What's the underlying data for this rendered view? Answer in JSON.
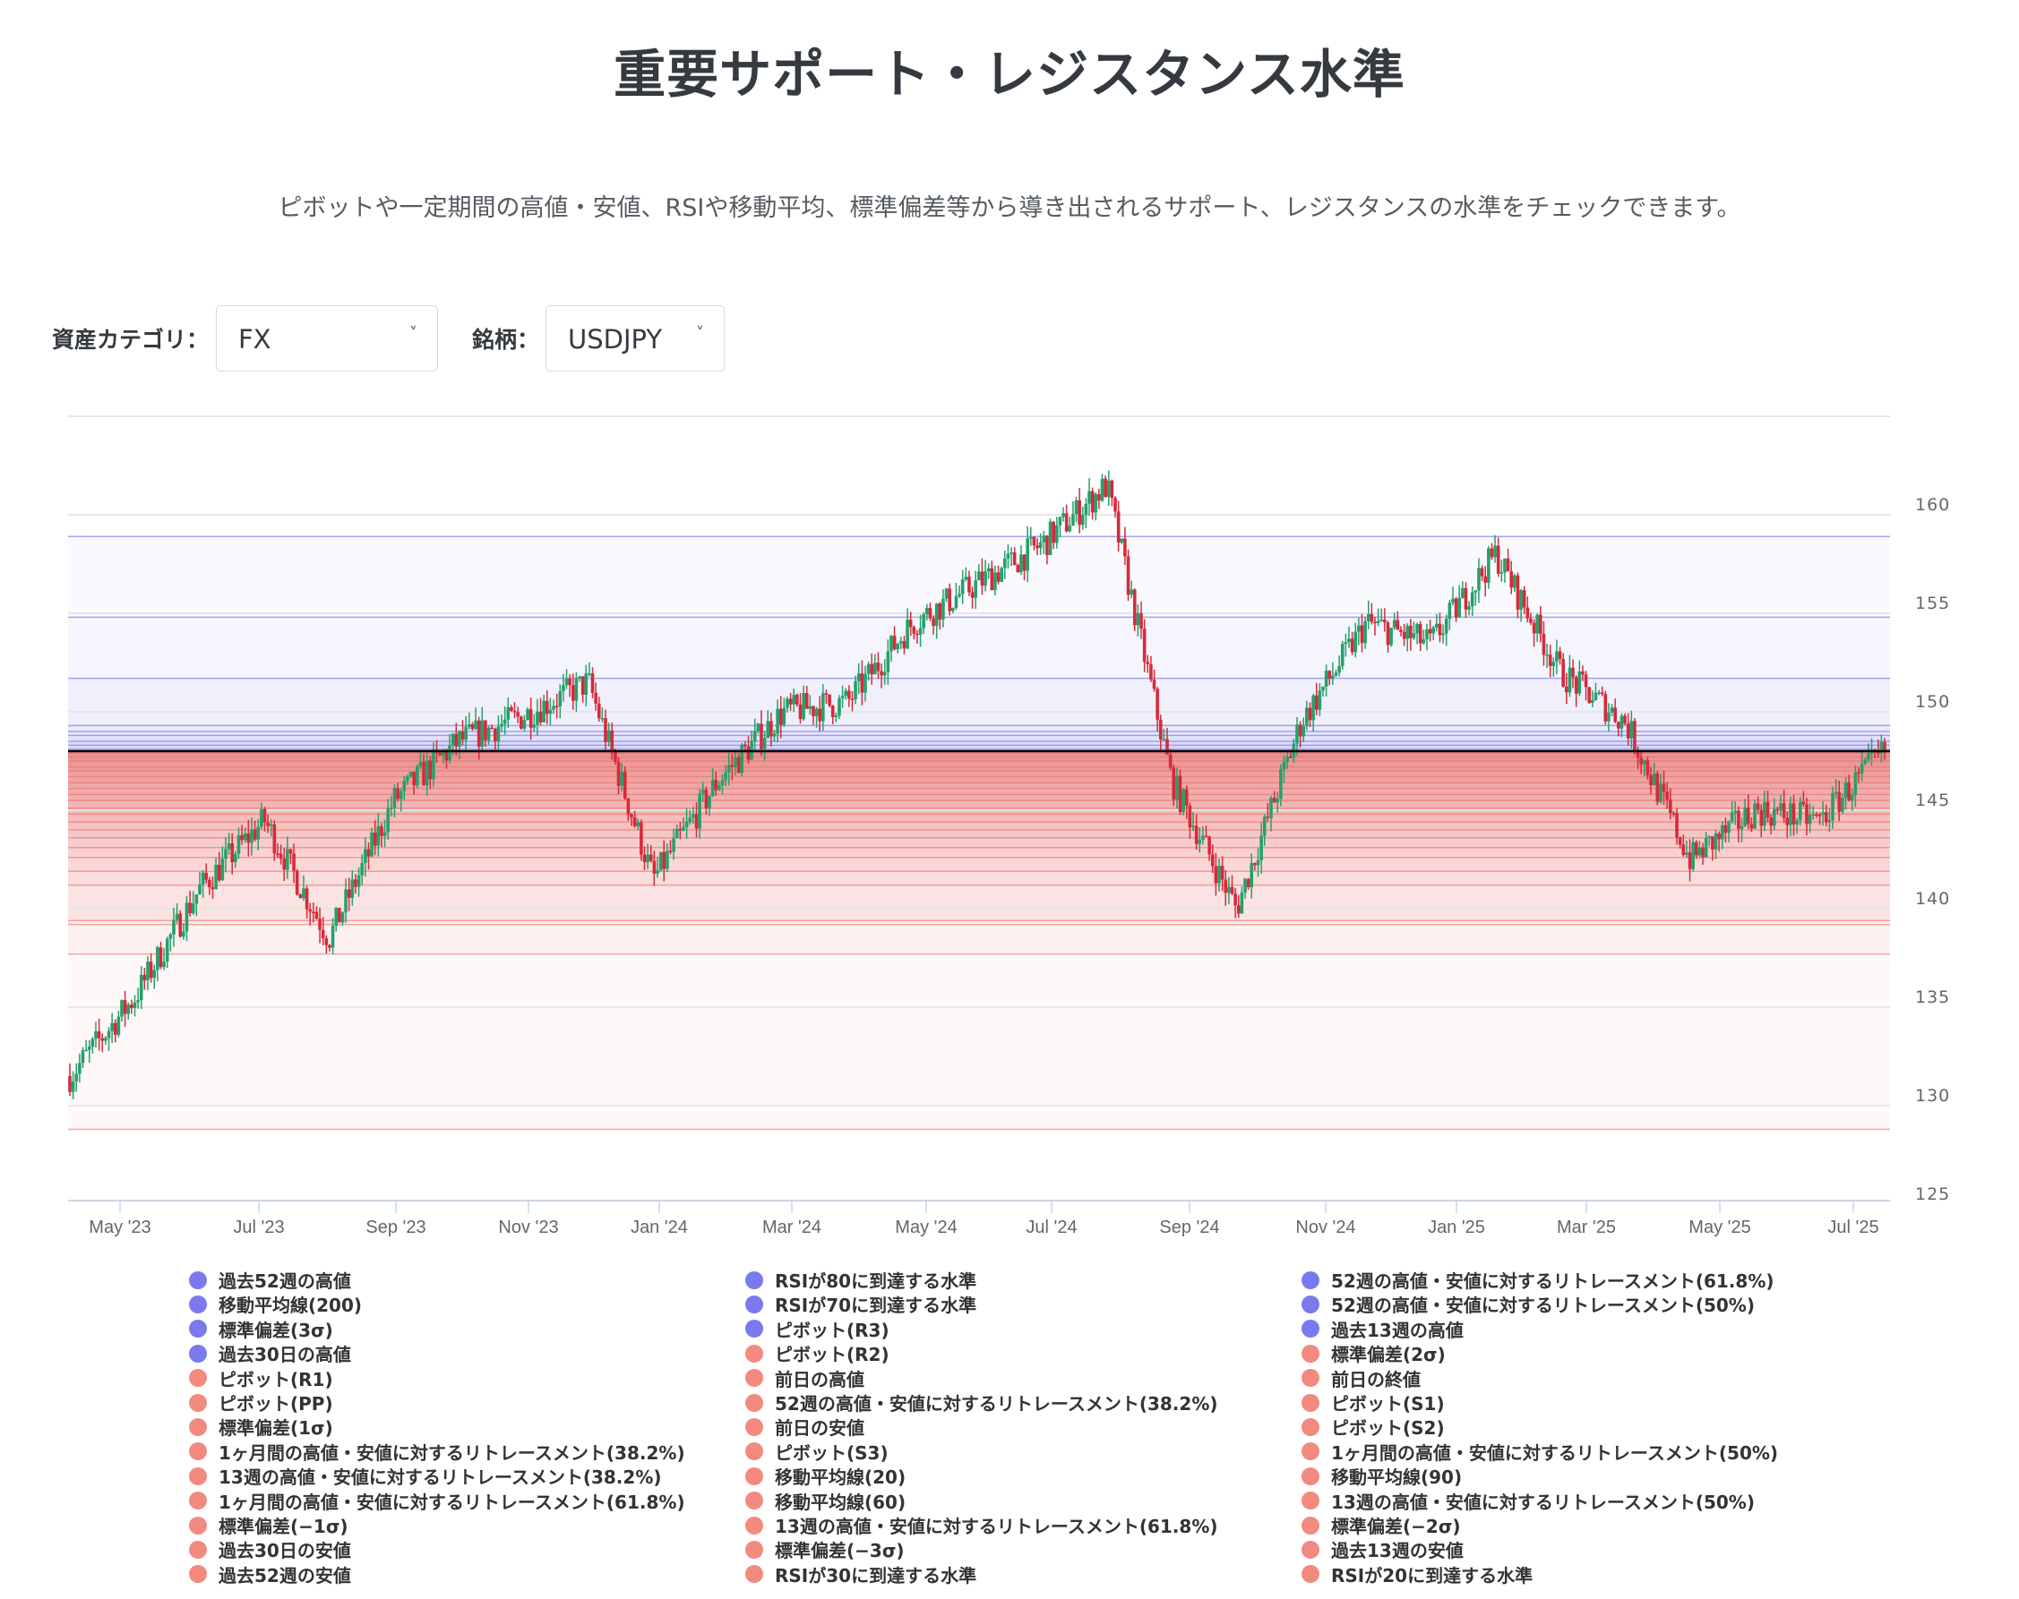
{
  "header": {
    "title": "重要サポート・レジスタンス水準",
    "subtitle": "ピボットや一定期間の高値・安値、RSIや移動平均、標準偏差等から導き出されるサポート、レジスタンスの水準をチェックできます。"
  },
  "controls": {
    "category_label": "資産カテゴリ：",
    "category_value": "FX",
    "symbol_label": "銘柄：",
    "symbol_value": "USDJPY",
    "chevron": "˅"
  },
  "colors": {
    "up_candle": "#26a06b",
    "down_candle": "#d62a3a",
    "resistance": "#7a7aee",
    "support": "#f28a80",
    "current_price_line": "#000000",
    "grid": "#e6e6e6"
  },
  "chart_data": {
    "type": "candlestick",
    "title": "USDJPY",
    "xlabel": "",
    "ylabel": "",
    "ylim": [
      125,
      165
    ],
    "y_ticks": [
      125,
      130,
      135,
      140,
      145,
      150,
      155,
      160
    ],
    "x_ticks": [
      "May '23",
      "Jul '23",
      "Sep '23",
      "Nov '23",
      "Jan '24",
      "Mar '24",
      "May '24",
      "Jul '24",
      "Sep '24",
      "Nov '24",
      "Jan '25",
      "Mar '25",
      "May '25",
      "Jul '25"
    ],
    "grid": true,
    "legend_position": "bottom",
    "current_price": 148.0,
    "price_path": [
      {
        "x": "Apr '23",
        "close": 131.5
      },
      {
        "x": "May '23",
        "close": 135.5
      },
      {
        "x": "Jun '23",
        "close": 141.0
      },
      {
        "x": "Jul '23",
        "close": 144.5
      },
      {
        "x": "Jul '23 end",
        "close": 138.5
      },
      {
        "x": "Aug '23",
        "close": 145.5
      },
      {
        "x": "Sep '23",
        "close": 148.5
      },
      {
        "x": "Oct '23",
        "close": 149.8
      },
      {
        "x": "Nov '23",
        "close": 151.5
      },
      {
        "x": "Dec '23",
        "close": 141.5
      },
      {
        "x": "Jan '24",
        "close": 146.5
      },
      {
        "x": "Feb '24",
        "close": 150.0
      },
      {
        "x": "Mar '24",
        "close": 150.5
      },
      {
        "x": "Apr '24",
        "close": 154.5
      },
      {
        "x": "May '24",
        "close": 156.5
      },
      {
        "x": "Jun '24",
        "close": 158.5
      },
      {
        "x": "Jul '24",
        "close": 161.5
      },
      {
        "x": "Aug '24",
        "close": 146.5
      },
      {
        "x": "Sep '24",
        "close": 140.0
      },
      {
        "x": "Oct '24",
        "close": 149.5
      },
      {
        "x": "Nov '24",
        "close": 154.5
      },
      {
        "x": "Dec '24",
        "close": 153.5
      },
      {
        "x": "Jan '25",
        "close": 158.0
      },
      {
        "x": "Feb '25",
        "close": 152.0
      },
      {
        "x": "Mar '25",
        "close": 149.5
      },
      {
        "x": "Apr '25",
        "close": 142.5
      },
      {
        "x": "May '25",
        "close": 145.0
      },
      {
        "x": "Jun '25",
        "close": 144.5
      },
      {
        "x": "Jul '25",
        "close": 148.0
      }
    ],
    "resistance_levels_approx": [
      158.9,
      154.8,
      151.7,
      149.3,
      149.0,
      148.8,
      148.5,
      148.3,
      148.1
    ],
    "support_levels_approx": [
      147.9,
      147.7,
      147.5,
      147.2,
      147.0,
      146.7,
      146.4,
      146.1,
      145.8,
      145.5,
      145.1,
      144.8,
      144.4,
      144.0,
      143.6,
      143.1,
      142.6,
      141.9,
      141.2,
      139.4,
      139.2,
      137.7,
      128.8
    ],
    "series": [
      {
        "name": "過去52週の高値",
        "group": "resistance"
      },
      {
        "name": "移動平均線(200)",
        "group": "resistance"
      },
      {
        "name": "標準偏差(3σ)",
        "group": "resistance"
      },
      {
        "name": "過去30日の高値",
        "group": "resistance"
      },
      {
        "name": "RSIが80に到達する水準",
        "group": "resistance"
      },
      {
        "name": "RSIが70に到達する水準",
        "group": "resistance"
      },
      {
        "name": "ピボット(R3)",
        "group": "resistance"
      },
      {
        "name": "52週の高値・安値に対するリトレースメント(61.8%)",
        "group": "resistance"
      },
      {
        "name": "52週の高値・安値に対するリトレースメント(50%)",
        "group": "resistance"
      },
      {
        "name": "過去13週の高値",
        "group": "resistance"
      }
    ]
  },
  "legend": {
    "columns": [
      [
        {
          "label": "過去52週の高値",
          "type": "resistance"
        },
        {
          "label": "移動平均線(200)",
          "type": "resistance"
        },
        {
          "label": "標準偏差(3σ)",
          "type": "resistance"
        },
        {
          "label": "過去30日の高値",
          "type": "resistance"
        },
        {
          "label": "ピボット(R1)",
          "type": "support"
        },
        {
          "label": "ピボット(PP)",
          "type": "support"
        },
        {
          "label": "標準偏差(1σ)",
          "type": "support"
        },
        {
          "label": "1ヶ月間の高値・安値に対するリトレースメント(38.2%)",
          "type": "support"
        },
        {
          "label": "13週の高値・安値に対するリトレースメント(38.2%)",
          "type": "support"
        },
        {
          "label": "1ヶ月間の高値・安値に対するリトレースメント(61.8%)",
          "type": "support"
        },
        {
          "label": "標準偏差(−1σ)",
          "type": "support"
        },
        {
          "label": "過去30日の安値",
          "type": "support"
        },
        {
          "label": "過去52週の安値",
          "type": "support"
        }
      ],
      [
        {
          "label": "RSIが80に到達する水準",
          "type": "resistance"
        },
        {
          "label": "RSIが70に到達する水準",
          "type": "resistance"
        },
        {
          "label": "ピボット(R3)",
          "type": "resistance"
        },
        {
          "label": "ピボット(R2)",
          "type": "support"
        },
        {
          "label": "前日の高値",
          "type": "support"
        },
        {
          "label": "52週の高値・安値に対するリトレースメント(38.2%)",
          "type": "support"
        },
        {
          "label": "前日の安値",
          "type": "support"
        },
        {
          "label": "ピボット(S3)",
          "type": "support"
        },
        {
          "label": "移動平均線(20)",
          "type": "support"
        },
        {
          "label": "移動平均線(60)",
          "type": "support"
        },
        {
          "label": "13週の高値・安値に対するリトレースメント(61.8%)",
          "type": "support"
        },
        {
          "label": "標準偏差(−3σ)",
          "type": "support"
        },
        {
          "label": "RSIが30に到達する水準",
          "type": "support"
        }
      ],
      [
        {
          "label": "52週の高値・安値に対するリトレースメント(61.8%)",
          "type": "resistance"
        },
        {
          "label": "52週の高値・安値に対するリトレースメント(50%)",
          "type": "resistance"
        },
        {
          "label": "過去13週の高値",
          "type": "resistance"
        },
        {
          "label": "標準偏差(2σ)",
          "type": "support"
        },
        {
          "label": "前日の終値",
          "type": "support"
        },
        {
          "label": "ピボット(S1)",
          "type": "support"
        },
        {
          "label": "ピボット(S2)",
          "type": "support"
        },
        {
          "label": "1ヶ月間の高値・安値に対するリトレースメント(50%)",
          "type": "support"
        },
        {
          "label": "移動平均線(90)",
          "type": "support"
        },
        {
          "label": "13週の高値・安値に対するリトレースメント(50%)",
          "type": "support"
        },
        {
          "label": "標準偏差(−2σ)",
          "type": "support"
        },
        {
          "label": "過去13週の安値",
          "type": "support"
        },
        {
          "label": "RSIが20に到達する水準",
          "type": "support"
        }
      ]
    ]
  }
}
